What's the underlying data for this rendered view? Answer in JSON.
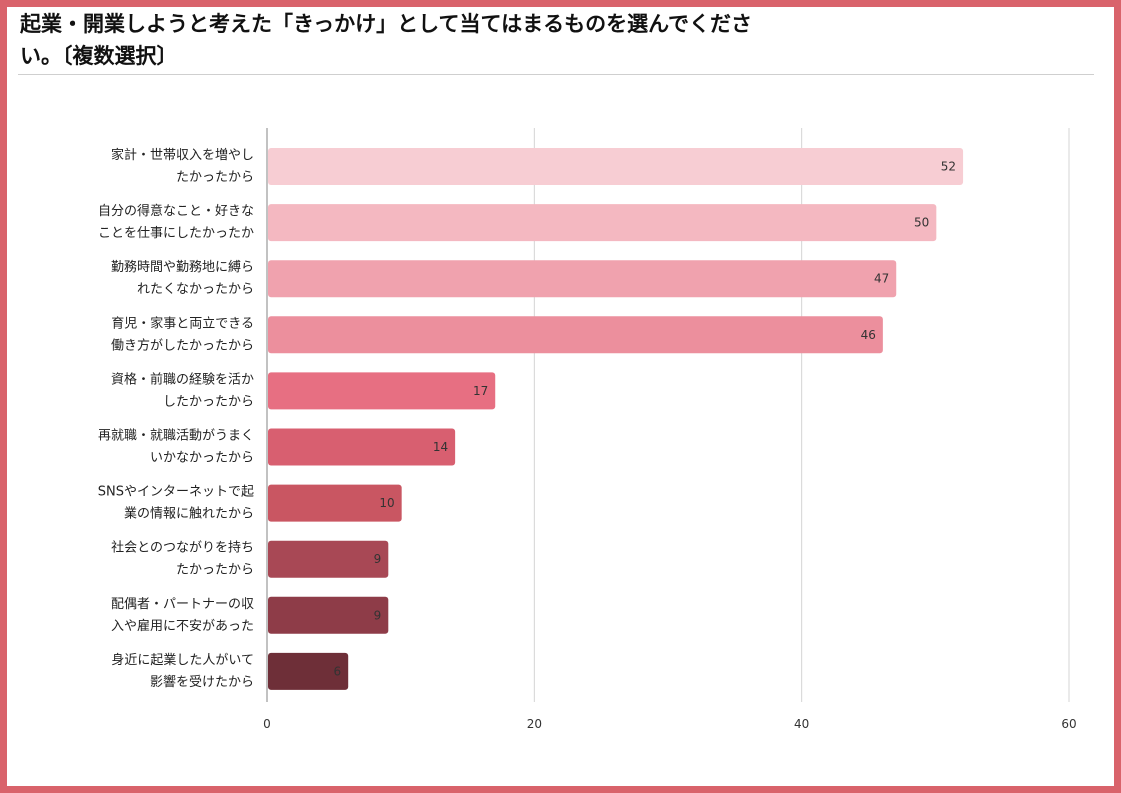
{
  "title_line1": "起業・開業しようと考えた「きっかけ」として当てはまるものを選んでくださ",
  "title_line2": "い。〔複数選択〕",
  "chart_data": {
    "type": "bar",
    "orientation": "horizontal",
    "title": "起業・開業しようと考えた「きっかけ」として当てはまるものを選んでください。〔複数選択〕",
    "categories": [
      [
        "家計・世帯収入を増やし",
        "たかったから"
      ],
      [
        "自分の得意なこと・好きな",
        "ことを仕事にしたかったか"
      ],
      [
        "勤務時間や勤務地に縛ら",
        "れたくなかったから"
      ],
      [
        "育児・家事と両立できる",
        "働き方がしたかったから"
      ],
      [
        "資格・前職の経験を活か",
        "したかったから"
      ],
      [
        "再就職・就職活動がうまく",
        "いかなかったから"
      ],
      [
        "SNSやインターネットで起",
        "業の情報に触れたから"
      ],
      [
        "社会とのつながりを持ち",
        "たかったから"
      ],
      [
        "配偶者・パートナーの収",
        "入や雇用に不安があった"
      ],
      [
        "身近に起業した人がいて",
        "影響を受けたから"
      ]
    ],
    "values": [
      52,
      50,
      47,
      46,
      17,
      14,
      10,
      9,
      9,
      6
    ],
    "colors": [
      "#f7cdd3",
      "#f4b8c1",
      "#f0a2ae",
      "#ec8f9d",
      "#e76f82",
      "#d85f70",
      "#c95662",
      "#a84855",
      "#8e3c48",
      "#6e2f38"
    ],
    "xlim": [
      0,
      60
    ],
    "xticks": [
      0,
      20,
      40,
      60
    ],
    "grid": true,
    "data_labels": true
  }
}
